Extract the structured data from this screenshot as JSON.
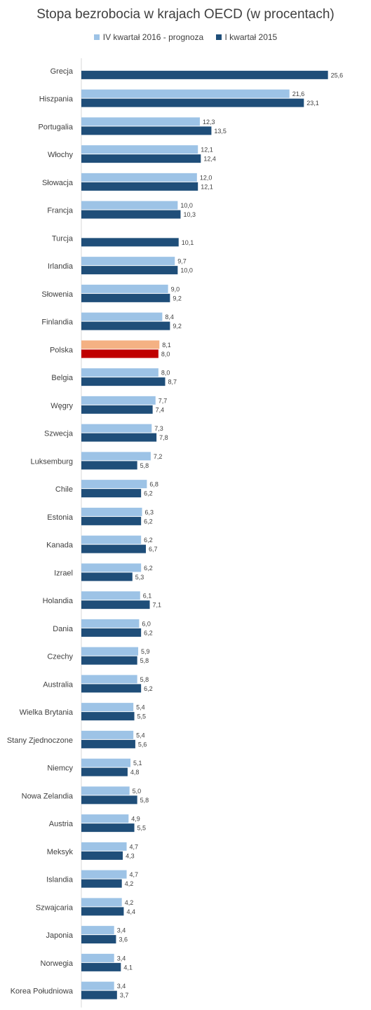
{
  "chart_data": {
    "type": "bar",
    "orientation": "horizontal",
    "title": "Stopa bezrobocia w krajach OECD (w procentach)",
    "legend_position": "top",
    "grid": false,
    "categories": [
      "Grecja",
      "Hiszpania",
      "Portugalia",
      "Włochy",
      "Słowacja",
      "Francja",
      "Turcja",
      "Irlandia",
      "Słowenia",
      "Finlandia",
      "Polska",
      "Belgia",
      "Węgry",
      "Szwecja",
      "Luksemburg",
      "Chile",
      "Estonia",
      "Kanada",
      "Izrael",
      "Holandia",
      "Dania",
      "Czechy",
      "Australia",
      "Wielka Brytania",
      "Stany Zjednoczone",
      "Niemcy",
      "Nowa Zelandia",
      "Austria",
      "Meksyk",
      "Islandia",
      "Szwajcaria",
      "Japonia",
      "Norwegia",
      "Korea Południowa"
    ],
    "series": [
      {
        "name": "IV kwartał 2016 - prognoza",
        "color": "#9dc3e6",
        "highlight_color": "#f4b183",
        "values": [
          null,
          21.6,
          12.3,
          12.1,
          12.0,
          10.0,
          null,
          9.7,
          9.0,
          8.4,
          8.1,
          8.0,
          7.7,
          7.3,
          7.2,
          6.8,
          6.3,
          6.2,
          6.2,
          6.1,
          6.0,
          5.9,
          5.8,
          5.4,
          5.4,
          5.1,
          5.0,
          4.9,
          4.7,
          4.7,
          4.2,
          3.4,
          3.4,
          3.4
        ],
        "labels": [
          "",
          "21,6",
          "12,3",
          "12,1",
          "12,0",
          "10,0",
          "",
          "9,7",
          "9,0",
          "8,4",
          "8,1",
          "8,0",
          "7,7",
          "7,3",
          "7,2",
          "6,8",
          "6,3",
          "6,2",
          "6,2",
          "6,1",
          "6,0",
          "5,9",
          "5,8",
          "5,4",
          "5,4",
          "5,1",
          "5,0",
          "4,9",
          "4,7",
          "4,7",
          "4,2",
          "3,4",
          "3,4",
          "3,4"
        ]
      },
      {
        "name": "I kwartał 2015",
        "color": "#1f4e79",
        "highlight_color": "#c00000",
        "values": [
          25.6,
          23.1,
          13.5,
          12.4,
          12.1,
          10.3,
          10.1,
          10.0,
          9.2,
          9.2,
          8.0,
          8.7,
          7.4,
          7.8,
          5.8,
          6.2,
          6.2,
          6.7,
          5.3,
          7.1,
          6.2,
          5.8,
          6.2,
          5.5,
          5.6,
          4.8,
          5.8,
          5.5,
          4.3,
          4.2,
          4.4,
          3.6,
          4.1,
          3.7
        ],
        "labels": [
          "25,6",
          "23,1",
          "13,5",
          "12,4",
          "12,1",
          "10,3",
          "10,1",
          "10,0",
          "9,2",
          "9,2",
          "8,0",
          "8,7",
          "7,4",
          "7,8",
          "5,8",
          "6,2",
          "6,2",
          "6,7",
          "5,3",
          "7,1",
          "6,2",
          "5,8",
          "6,2",
          "5,5",
          "5,6",
          "4,8",
          "5,8",
          "5,5",
          "4,3",
          "4,2",
          "4,4",
          "3,6",
          "4,1",
          "3,7"
        ]
      }
    ],
    "highlight_category": "Polska",
    "xlim": [
      0,
      26.5
    ]
  }
}
